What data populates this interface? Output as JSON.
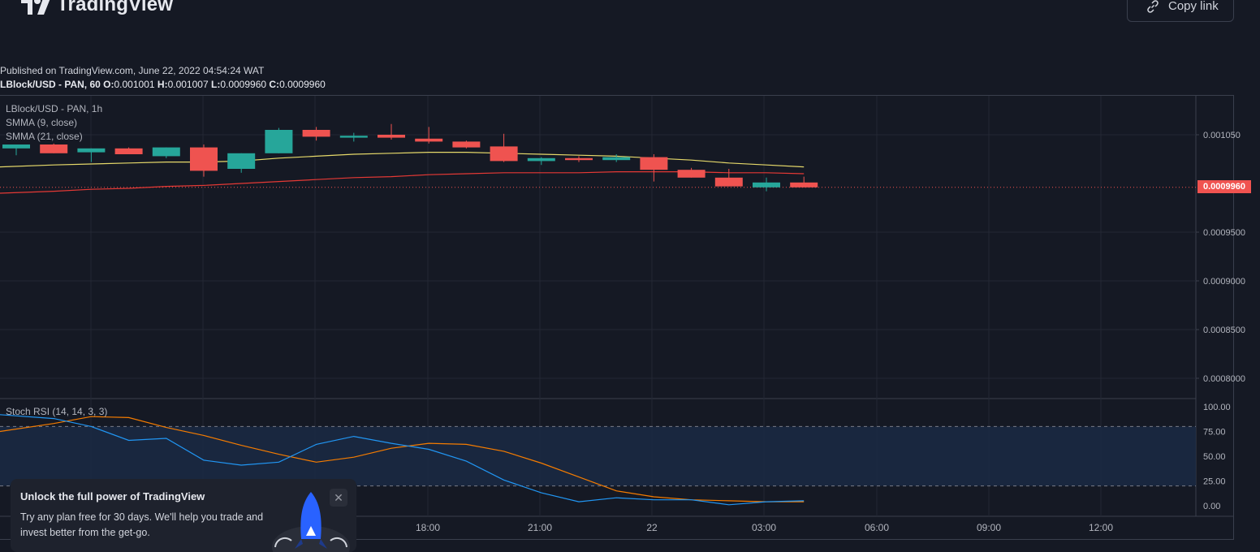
{
  "header": {
    "brand": "TradingView",
    "copy_link_label": "Copy link"
  },
  "published": "Published on TradingView.com, June 22, 2022 04:54:24 WAT",
  "ohlc": {
    "symbol": "LBlock/USD - PAN, 60",
    "o_label": "O:",
    "o": "0.001001",
    "h_label": "H:",
    "h": "0.001007",
    "l_label": "L:",
    "l": "0.0009960",
    "c_label": "C:",
    "c": "0.0009960"
  },
  "legend": {
    "symbol": "LBlock/USD - PAN, 1h",
    "smma9": "SMMA (9, close)",
    "smma21": "SMMA (21, close)",
    "stoch": "Stoch RSI (14, 14, 3, 3)"
  },
  "price_axis": [
    "0.001050",
    "0.0009500",
    "0.0009000",
    "0.0008500",
    "0.0008000"
  ],
  "last_price": "0.0009960",
  "stoch_axis": [
    "100.00",
    "75.00",
    "50.00",
    "25.00",
    "0.00"
  ],
  "time_axis": [
    "18:00",
    "21:00",
    "22",
    "03:00",
    "06:00",
    "09:00",
    "12:00"
  ],
  "colors": {
    "up": "#26a69a",
    "down": "#ef5350",
    "smma9": "#e6d96a",
    "smma21": "#e53935",
    "stoch_k": "#2196f3",
    "stoch_d": "#f57c00",
    "background": "#151924"
  },
  "promo": {
    "title": "Unlock the full power of TradingView",
    "body": "Try any plan free for 30 days. We'll help you trade and invest better from the get-go.",
    "close_icon": "close-icon"
  },
  "chart_data": {
    "type": "candlestick",
    "price_ylim": [
      0.00078,
      0.00109
    ],
    "candles": [
      {
        "o": 0.001036,
        "h": 0.00104,
        "l": 0.001029,
        "c": 0.00104
      },
      {
        "o": 0.00104,
        "h": 0.001041,
        "l": 0.001031,
        "c": 0.001031
      },
      {
        "o": 0.001032,
        "h": 0.001036,
        "l": 0.001022,
        "c": 0.001036
      },
      {
        "o": 0.001036,
        "h": 0.001037,
        "l": 0.00103,
        "c": 0.00103
      },
      {
        "o": 0.001028,
        "h": 0.001037,
        "l": 0.001026,
        "c": 0.001037
      },
      {
        "o": 0.001037,
        "h": 0.00104,
        "l": 0.001007,
        "c": 0.001013
      },
      {
        "o": 0.001015,
        "h": 0.001031,
        "l": 0.001011,
        "c": 0.001031
      },
      {
        "o": 0.001031,
        "h": 0.001057,
        "l": 0.001031,
        "c": 0.001055
      },
      {
        "o": 0.001055,
        "h": 0.001058,
        "l": 0.001044,
        "c": 0.001048
      },
      {
        "o": 0.001047,
        "h": 0.001052,
        "l": 0.001043,
        "c": 0.001049
      },
      {
        "o": 0.00105,
        "h": 0.001061,
        "l": 0.001045,
        "c": 0.001047
      },
      {
        "o": 0.001046,
        "h": 0.001058,
        "l": 0.001041,
        "c": 0.001043
      },
      {
        "o": 0.001043,
        "h": 0.001044,
        "l": 0.001036,
        "c": 0.001037
      },
      {
        "o": 0.001038,
        "h": 0.001051,
        "l": 0.001022,
        "c": 0.001023
      },
      {
        "o": 0.001023,
        "h": 0.001027,
        "l": 0.001019,
        "c": 0.001026
      },
      {
        "o": 0.001026,
        "h": 0.001028,
        "l": 0.001022,
        "c": 0.001024
      },
      {
        "o": 0.001024,
        "h": 0.00103,
        "l": 0.001022,
        "c": 0.001027
      },
      {
        "o": 0.001027,
        "h": 0.00103,
        "l": 0.001002,
        "c": 0.001014
      },
      {
        "o": 0.001014,
        "h": 0.001016,
        "l": 0.001006,
        "c": 0.001006
      },
      {
        "o": 0.001006,
        "h": 0.001015,
        "l": 0.000997,
        "c": 0.000997
      },
      {
        "o": 0.000996,
        "h": 0.001006,
        "l": 0.000992,
        "c": 0.001001
      },
      {
        "o": 0.001001,
        "h": 0.001007,
        "l": 0.000996,
        "c": 0.000996
      }
    ],
    "smma9": [
      0.001017,
      0.001019,
      0.00102,
      0.001021,
      0.001022,
      0.001022,
      0.001023,
      0.001026,
      0.001028,
      0.00103,
      0.001031,
      0.001032,
      0.001032,
      0.001031,
      0.00103,
      0.001029,
      0.001028,
      0.001026,
      0.001024,
      0.001021,
      0.001019,
      0.001017
    ],
    "smma21": [
      0.00099,
      0.000992,
      0.000994,
      0.000995,
      0.000997,
      0.000998,
      0.001,
      0.001002,
      0.001004,
      0.001006,
      0.001007,
      0.001009,
      0.00101,
      0.001011,
      0.001011,
      0.001011,
      0.001012,
      0.001012,
      0.001012,
      0.001011,
      0.001011,
      0.00101
    ],
    "stoch_k": [
      92,
      88,
      80,
      66,
      68,
      46,
      41,
      44,
      62,
      70,
      63,
      57,
      45,
      26,
      13,
      4,
      8,
      6,
      6,
      1,
      4,
      5
    ],
    "stoch_d": [
      75,
      83,
      90,
      89,
      79,
      71,
      61,
      52,
      44,
      49,
      58,
      63,
      62,
      55,
      43,
      29,
      15,
      9,
      6,
      5,
      4,
      4
    ],
    "stoch_ylim": [
      0,
      100
    ],
    "stoch_bands": [
      20,
      80
    ]
  }
}
